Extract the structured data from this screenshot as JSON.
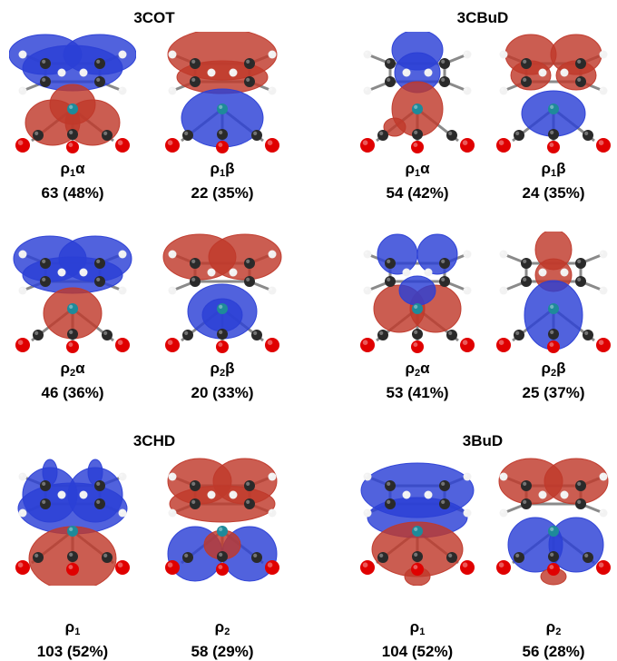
{
  "colors": {
    "positive_lobe": "#c0392b",
    "negative_lobe": "#2b3fd6",
    "oxygen": "#e00000",
    "carbon": "#2a2a2a",
    "hydrogen": "#f2f2f2",
    "metal": "#1e8a9a"
  },
  "groups": [
    {
      "title": "3COT",
      "panels": [
        {
          "sym": "ρ",
          "sub": "1",
          "spin": "α",
          "value": "63 (48%)"
        },
        {
          "sym": "ρ",
          "sub": "1",
          "spin": "β",
          "value": "22 (35%)"
        },
        {
          "sym": "ρ",
          "sub": "2",
          "spin": "α",
          "value": "46 (36%)"
        },
        {
          "sym": "ρ",
          "sub": "2",
          "spin": "β",
          "value": "20 (33%)"
        }
      ]
    },
    {
      "title": "3CBuD",
      "panels": [
        {
          "sym": "ρ",
          "sub": "1",
          "spin": "α",
          "value": "54 (42%)"
        },
        {
          "sym": "ρ",
          "sub": "1",
          "spin": "β",
          "value": "24 (35%)"
        },
        {
          "sym": "ρ",
          "sub": "2",
          "spin": "α",
          "value": "53 (41%)"
        },
        {
          "sym": "ρ",
          "sub": "2",
          "spin": "β",
          "value": "25 (37%)"
        }
      ]
    },
    {
      "title": "3CHD",
      "panels": [
        {
          "sym": "ρ",
          "sub": "1",
          "spin": "",
          "value": "103 (52%)"
        },
        {
          "sym": "ρ",
          "sub": "2",
          "spin": "",
          "value": "58 (29%)"
        }
      ]
    },
    {
      "title": "3BuD",
      "panels": [
        {
          "sym": "ρ",
          "sub": "1",
          "spin": "",
          "value": "104 (52%)"
        },
        {
          "sym": "ρ",
          "sub": "2",
          "spin": "",
          "value": "56 (28%)"
        }
      ]
    }
  ]
}
